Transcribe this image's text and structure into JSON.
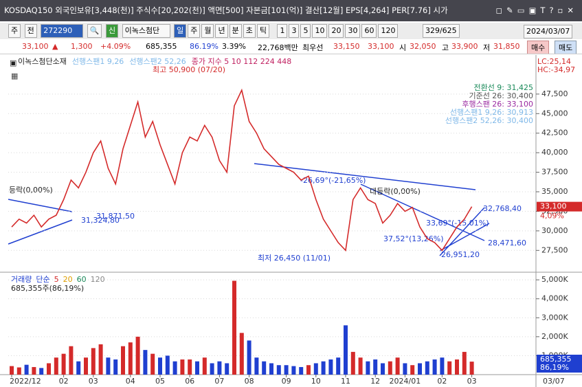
{
  "title_bar": {
    "text": "KOSDAQ150 외국인보유[3,448(천)] 주식수[20,202(천)] 액면[500] 자본금[101(억)] 결산[12월] EPS[4,264] PER[7.76] 시가"
  },
  "toolbar": {
    "market": "주",
    "prev": "전",
    "code": "272290",
    "new": "신",
    "name": "이녹스첨단",
    "periods": [
      "일",
      "주",
      "월",
      "년",
      "분",
      "초",
      "틱"
    ],
    "intervals": [
      "1",
      "3",
      "5",
      "10",
      "20",
      "30",
      "60",
      "120"
    ],
    "count": "329/625",
    "date": "2024/03/07"
  },
  "quote": {
    "price": "33,100",
    "change": "1,300",
    "rate": "+4.09%",
    "volume": "685,355",
    "volume_rate": "86.19%",
    "turnover": "3.39%",
    "amount": "22,768백만",
    "best_label": "최우선",
    "ask": "33,150",
    "bid": "33,100",
    "open_label": "시",
    "open": "32,050",
    "high_label": "고",
    "high": "33,900",
    "low_label": "저",
    "low": "31,850",
    "buy": "매수",
    "sell": "매도"
  },
  "chart_data": {
    "type": "line",
    "legend": [
      {
        "text": "이녹스첨단소재",
        "color": "#222222"
      },
      {
        "text": "선행스팬1 9,26",
        "color": "#7fb8e8"
      },
      {
        "text": "선행스팬2 52,26",
        "color": "#7fb8e8"
      },
      {
        "text": "종가 지수 5 10 112 224 448",
        "color": "#c02060"
      }
    ],
    "range_labels": [
      "LC:25,14",
      "HC:-34,97"
    ],
    "ichimoku_labels": [
      {
        "text": "전환선 9: 31,425",
        "color": "#1a8a5a"
      },
      {
        "text": "기준선 26: 30,400",
        "color": "#555555"
      },
      {
        "text": "후행스팬 26: 33,100",
        "color": "#9a2aa0"
      },
      {
        "text": "선행스팬1 9,26: 30,913",
        "color": "#7fb8e8"
      },
      {
        "text": "선행스팬2 52,26: 30,400",
        "color": "#7fb8e8"
      }
    ],
    "annotations": [
      "최고 50,900 (07/20)",
      "최저 26,450 (11/01)",
      "32,768,40",
      "31,324,80",
      "31,871,50",
      "26,951,20",
      "28,471,60",
      "-26,69°(-21,65%)",
      "37,52°(13,26%)",
      "33,69°(-15,01%)",
      "등락(0,00%)",
      "대등락(0,00%)"
    ],
    "last_price_tag": "33,100",
    "last_rate_tag": "4,09%",
    "price_color": "#d42a2a",
    "down_color": "#1f3fd0",
    "ylim": [
      24800,
      52500
    ],
    "yticks": [
      {
        "value": 27500,
        "label": "27,500"
      },
      {
        "value": 30000,
        "label": "30,000"
      },
      {
        "value": 32500,
        "label": "32,500"
      },
      {
        "value": 35000,
        "label": "35,000"
      },
      {
        "value": 37500,
        "label": "37,500"
      },
      {
        "value": 40000,
        "label": "40,000"
      },
      {
        "value": 42500,
        "label": "42,500"
      },
      {
        "value": 45000,
        "label": "45,000"
      },
      {
        "value": 47500,
        "label": "47,500"
      }
    ],
    "months": [
      {
        "label": "2022/12",
        "closes": [
          30500,
          31500,
          31000
        ],
        "volumes": [
          450,
          380,
          520
        ]
      },
      {
        "label": null,
        "closes": [
          32000,
          30500,
          31500,
          32000
        ],
        "volumes": [
          400,
          350,
          600,
          900
        ]
      },
      {
        "label": "02",
        "closes": [
          34000,
          36500,
          35500,
          37500
        ],
        "volumes": [
          1100,
          1500,
          700,
          900
        ]
      },
      {
        "label": "03",
        "closes": [
          40000,
          41500,
          38000,
          36000,
          40500
        ],
        "volumes": [
          1400,
          1600,
          900,
          800,
          1500
        ]
      },
      {
        "label": "04",
        "closes": [
          43500,
          46500,
          42000,
          44000
        ],
        "volumes": [
          1700,
          2000,
          1300,
          1100
        ]
      },
      {
        "label": "05",
        "closes": [
          41000,
          38500,
          36000,
          40000
        ],
        "volumes": [
          900,
          1000,
          700,
          800
        ]
      },
      {
        "label": "06",
        "closes": [
          42000,
          41500,
          43500,
          42000
        ],
        "volumes": [
          800,
          700,
          900,
          600
        ]
      },
      {
        "label": "07",
        "closes": [
          39000,
          37500,
          46000,
          48000
        ],
        "volumes": [
          700,
          600,
          4950,
          2200
        ]
      },
      {
        "label": "08",
        "closes": [
          44000,
          42500,
          40500,
          39500,
          38500
        ],
        "volumes": [
          1800,
          900,
          700,
          600,
          500
        ]
      },
      {
        "label": "09",
        "closes": [
          38000,
          37500,
          36500,
          37000
        ],
        "volumes": [
          500,
          450,
          400,
          500
        ]
      },
      {
        "label": "10",
        "closes": [
          34000,
          31500,
          30000,
          28500
        ],
        "volumes": [
          600,
          700,
          800,
          900
        ]
      },
      {
        "label": "11",
        "closes": [
          27500,
          34000,
          35500,
          34000
        ],
        "volumes": [
          2600,
          1200,
          900,
          700
        ]
      },
      {
        "label": "12",
        "closes": [
          33500,
          31000,
          32000,
          33500
        ],
        "volumes": [
          800,
          600,
          700,
          900
        ]
      },
      {
        "label": "2024/01",
        "closes": [
          32500,
          33000,
          30500,
          29000,
          28500
        ],
        "volumes": [
          600,
          500,
          600,
          700,
          800
        ]
      },
      {
        "label": "02",
        "closes": [
          27500,
          29000,
          30500,
          31500
        ],
        "volumes": [
          900,
          700,
          800,
          1200
        ]
      },
      {
        "label": "03",
        "closes": [
          33100
        ],
        "volumes": [
          685.355
        ]
      }
    ],
    "last_date": "03/07",
    "volume_legend": [
      {
        "text": "거래량",
        "color": "#1f3fd0"
      },
      {
        "text": "단순",
        "color": "#1f3fd0"
      },
      {
        "text": "5",
        "color": "#d42a2a"
      },
      {
        "text": "20",
        "color": "#e0a000"
      },
      {
        "text": "60",
        "color": "#1a8a5a"
      },
      {
        "text": "120",
        "color": "#888888"
      }
    ],
    "volume_info": "685,355주(86,19%)",
    "volume_tags": [
      "685,355",
      "86,19%"
    ],
    "volume_ylim": [
      0,
      5330
    ],
    "volume_yticks": [
      {
        "value": 1000,
        "label": "1,000K"
      },
      {
        "value": 2000,
        "label": "2,000K"
      },
      {
        "value": 3000,
        "label": "3,000K"
      },
      {
        "value": 4000,
        "label": "4,000K"
      },
      {
        "value": 5000,
        "label": "5,000K"
      }
    ]
  }
}
